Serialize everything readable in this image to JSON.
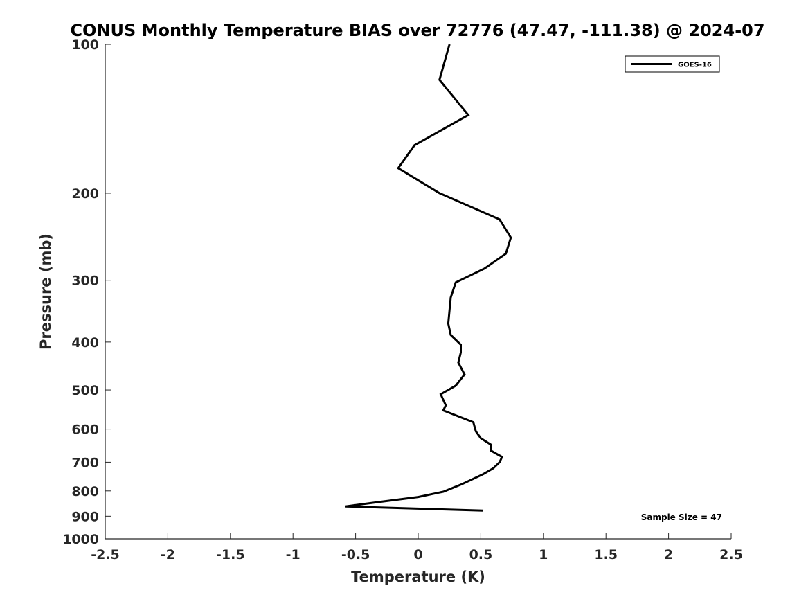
{
  "chart_data": {
    "type": "line",
    "title": "CONUS Monthly Temperature BIAS over 72776 (47.47, -111.38) @ 2024-07",
    "xlabel": "Temperature (K)",
    "ylabel": "Pressure (mb)",
    "xlim": [
      -2.5,
      2.5
    ],
    "ylim": [
      1000,
      100
    ],
    "yscale": "log",
    "y_reversed": true,
    "xticks": [
      -2.5,
      -2,
      -1.5,
      -1,
      -0.5,
      0,
      0.5,
      1,
      1.5,
      2,
      2.5
    ],
    "xtick_labels": [
      "-2.5",
      "-2",
      "-1.5",
      "-1",
      "-0.5",
      "0",
      "0.5",
      "1",
      "1.5",
      "2",
      "2.5"
    ],
    "yticks": [
      100,
      200,
      300,
      400,
      500,
      600,
      700,
      800,
      900,
      1000
    ],
    "ytick_labels": [
      "100",
      "200",
      "300",
      "400",
      "500",
      "600",
      "700",
      "800",
      "900",
      "1000"
    ],
    "grid": false,
    "legend_position": "top-right",
    "series": [
      {
        "name": "GOES-16",
        "color": "#000000",
        "points": [
          {
            "x": 0.25,
            "y": 100
          },
          {
            "x": 0.17,
            "y": 118
          },
          {
            "x": 0.4,
            "y": 139
          },
          {
            "x": -0.03,
            "y": 160
          },
          {
            "x": -0.16,
            "y": 178
          },
          {
            "x": 0.17,
            "y": 200
          },
          {
            "x": 0.65,
            "y": 226
          },
          {
            "x": 0.74,
            "y": 246
          },
          {
            "x": 0.7,
            "y": 265
          },
          {
            "x": 0.53,
            "y": 284
          },
          {
            "x": 0.3,
            "y": 303
          },
          {
            "x": 0.26,
            "y": 325
          },
          {
            "x": 0.25,
            "y": 345
          },
          {
            "x": 0.24,
            "y": 367
          },
          {
            "x": 0.26,
            "y": 387
          },
          {
            "x": 0.34,
            "y": 405
          },
          {
            "x": 0.34,
            "y": 420
          },
          {
            "x": 0.32,
            "y": 440
          },
          {
            "x": 0.37,
            "y": 465
          },
          {
            "x": 0.3,
            "y": 490
          },
          {
            "x": 0.18,
            "y": 510
          },
          {
            "x": 0.22,
            "y": 537
          },
          {
            "x": 0.2,
            "y": 550
          },
          {
            "x": 0.44,
            "y": 581
          },
          {
            "x": 0.46,
            "y": 606
          },
          {
            "x": 0.5,
            "y": 626
          },
          {
            "x": 0.58,
            "y": 645
          },
          {
            "x": 0.58,
            "y": 663
          },
          {
            "x": 0.67,
            "y": 683
          },
          {
            "x": 0.65,
            "y": 700
          },
          {
            "x": 0.6,
            "y": 720
          },
          {
            "x": 0.52,
            "y": 740
          },
          {
            "x": 0.35,
            "y": 775
          },
          {
            "x": 0.2,
            "y": 803
          },
          {
            "x": 0,
            "y": 823
          },
          {
            "x": -0.32,
            "y": 843
          },
          {
            "x": -0.58,
            "y": 860
          },
          {
            "x": 0.52,
            "y": 877
          }
        ]
      }
    ],
    "annotation": "Sample Size = 47"
  }
}
